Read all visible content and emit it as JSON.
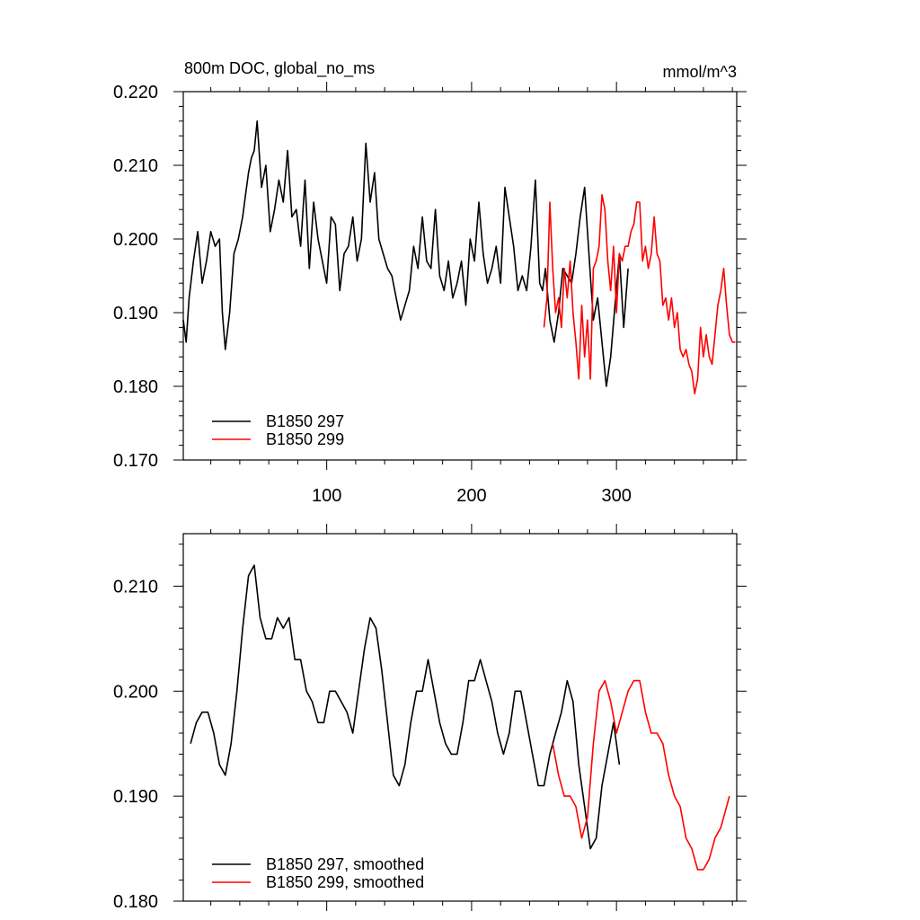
{
  "chart_data": [
    {
      "type": "line",
      "title": "800m DOC, global_no_ms",
      "units": "mmol/m^3",
      "xlabel": "",
      "ylabel": "",
      "xlim": [
        1,
        383
      ],
      "ylim": [
        0.17,
        0.22
      ],
      "x_ticks": [
        100,
        200,
        300
      ],
      "y_ticks": [
        "0.170",
        "0.180",
        "0.190",
        "0.200",
        "0.210",
        "0.220"
      ],
      "grid": false,
      "legend": "bottom-left",
      "series": [
        {
          "name": "B1850 297",
          "color": "#000000",
          "x": [
            1,
            3,
            5,
            8,
            11,
            14,
            17,
            20,
            23,
            26,
            28,
            30,
            33,
            36,
            39,
            42,
            44,
            46,
            48,
            50,
            52,
            55,
            58,
            61,
            64,
            67,
            70,
            73,
            76,
            79,
            82,
            85,
            88,
            91,
            94,
            97,
            100,
            103,
            106,
            109,
            112,
            115,
            118,
            121,
            124,
            127,
            130,
            133,
            136,
            139,
            142,
            145,
            148,
            151,
            154,
            157,
            160,
            163,
            166,
            169,
            172,
            175,
            178,
            181,
            184,
            187,
            190,
            193,
            196,
            199,
            202,
            205,
            208,
            211,
            214,
            217,
            220,
            223,
            226,
            229,
            232,
            235,
            238,
            241,
            244,
            247,
            249,
            251,
            254,
            257,
            260,
            263,
            266,
            269,
            272,
            275,
            278,
            281,
            284,
            287,
            290,
            293,
            296,
            299,
            302,
            305,
            308
          ],
          "values": [
            0.189,
            0.186,
            0.192,
            0.197,
            0.201,
            0.194,
            0.197,
            0.201,
            0.199,
            0.2,
            0.19,
            0.185,
            0.19,
            0.198,
            0.2,
            0.203,
            0.206,
            0.209,
            0.211,
            0.212,
            0.216,
            0.207,
            0.21,
            0.201,
            0.204,
            0.208,
            0.205,
            0.212,
            0.203,
            0.204,
            0.199,
            0.208,
            0.196,
            0.205,
            0.2,
            0.197,
            0.194,
            0.203,
            0.202,
            0.193,
            0.198,
            0.199,
            0.203,
            0.197,
            0.2,
            0.213,
            0.205,
            0.209,
            0.2,
            0.198,
            0.196,
            0.195,
            0.192,
            0.189,
            0.191,
            0.193,
            0.199,
            0.196,
            0.203,
            0.197,
            0.196,
            0.204,
            0.195,
            0.193,
            0.197,
            0.192,
            0.194,
            0.197,
            0.191,
            0.2,
            0.197,
            0.205,
            0.198,
            0.194,
            0.196,
            0.199,
            0.194,
            0.207,
            0.203,
            0.199,
            0.193,
            0.195,
            0.193,
            0.199,
            0.208,
            0.194,
            0.193,
            0.196,
            0.189,
            0.186,
            0.19,
            0.196,
            0.195,
            0.194,
            0.198,
            0.203,
            0.207,
            0.198,
            0.189,
            0.192,
            0.186,
            0.18,
            0.184,
            0.191,
            0.198,
            0.188,
            0.196
          ],
          "note_range": "x: 1–308"
        },
        {
          "name": "B1850 299",
          "color": "#ff0000",
          "x": [
            250,
            252,
            254,
            256,
            258,
            260,
            262,
            264,
            266,
            268,
            270,
            272,
            274,
            276,
            278,
            280,
            282,
            284,
            286,
            288,
            290,
            292,
            294,
            296,
            298,
            300,
            302,
            304,
            306,
            308,
            310,
            312,
            314,
            316,
            318,
            320,
            322,
            324,
            326,
            328,
            330,
            332,
            334,
            336,
            338,
            340,
            342,
            344,
            346,
            348,
            350,
            352,
            354,
            356,
            358,
            360,
            362,
            364,
            366,
            368,
            370,
            372,
            374,
            376,
            378,
            380,
            382
          ],
          "values": [
            0.188,
            0.192,
            0.205,
            0.196,
            0.19,
            0.192,
            0.188,
            0.196,
            0.192,
            0.197,
            0.19,
            0.186,
            0.181,
            0.191,
            0.184,
            0.189,
            0.181,
            0.196,
            0.197,
            0.199,
            0.206,
            0.204,
            0.197,
            0.193,
            0.199,
            0.19,
            0.198,
            0.197,
            0.199,
            0.199,
            0.201,
            0.202,
            0.205,
            0.205,
            0.197,
            0.199,
            0.196,
            0.198,
            0.203,
            0.198,
            0.197,
            0.191,
            0.192,
            0.189,
            0.192,
            0.188,
            0.19,
            0.185,
            0.184,
            0.185,
            0.183,
            0.182,
            0.179,
            0.181,
            0.188,
            0.184,
            0.187,
            0.184,
            0.183,
            0.187,
            0.191,
            0.193,
            0.196,
            0.191,
            0.187,
            0.186,
            0.186
          ]
        }
      ]
    },
    {
      "type": "line",
      "title": "",
      "xlabel": "",
      "ylabel": "",
      "xlim": [
        1,
        383
      ],
      "ylim": [
        0.18,
        0.215
      ],
      "x_ticks": [
        100,
        200,
        300
      ],
      "y_ticks": [
        "0.180",
        "0.190",
        "0.200",
        "0.210"
      ],
      "grid": false,
      "legend": "bottom-left",
      "series": [
        {
          "name": "B1850 297, smoothed",
          "color": "#000000",
          "x": [
            6,
            10,
            14,
            18,
            22,
            26,
            30,
            34,
            38,
            42,
            46,
            50,
            54,
            58,
            62,
            66,
            70,
            74,
            78,
            82,
            86,
            90,
            94,
            98,
            102,
            106,
            110,
            114,
            118,
            122,
            126,
            130,
            134,
            138,
            142,
            146,
            150,
            154,
            158,
            162,
            166,
            170,
            174,
            178,
            182,
            186,
            190,
            194,
            198,
            202,
            206,
            210,
            214,
            218,
            222,
            226,
            230,
            234,
            238,
            242,
            246,
            250,
            254,
            258,
            262,
            266,
            270,
            274,
            278,
            282,
            286,
            290,
            294,
            298,
            302
          ],
          "values": [
            0.195,
            0.197,
            0.198,
            0.198,
            0.196,
            0.193,
            0.192,
            0.195,
            0.2,
            0.206,
            0.211,
            0.212,
            0.207,
            0.205,
            0.205,
            0.207,
            0.206,
            0.207,
            0.203,
            0.203,
            0.2,
            0.199,
            0.197,
            0.197,
            0.2,
            0.2,
            0.199,
            0.198,
            0.196,
            0.2,
            0.204,
            0.207,
            0.206,
            0.202,
            0.197,
            0.192,
            0.191,
            0.193,
            0.197,
            0.2,
            0.2,
            0.203,
            0.2,
            0.197,
            0.195,
            0.194,
            0.194,
            0.197,
            0.201,
            0.201,
            0.203,
            0.201,
            0.199,
            0.196,
            0.194,
            0.196,
            0.2,
            0.2,
            0.197,
            0.194,
            0.191,
            0.191,
            0.194,
            0.196,
            0.198,
            0.201,
            0.199,
            0.193,
            0.189,
            0.185,
            0.186,
            0.191,
            0.194,
            0.197,
            0.193
          ]
        },
        {
          "name": "B1850 299, smoothed",
          "color": "#ff0000",
          "x": [
            256,
            260,
            264,
            268,
            272,
            276,
            280,
            284,
            288,
            292,
            296,
            300,
            304,
            308,
            312,
            316,
            320,
            324,
            328,
            332,
            336,
            340,
            344,
            348,
            352,
            356,
            360,
            364,
            368,
            372,
            376,
            378
          ],
          "values": [
            0.195,
            0.192,
            0.19,
            0.19,
            0.189,
            0.186,
            0.188,
            0.195,
            0.2,
            0.201,
            0.199,
            0.196,
            0.198,
            0.2,
            0.201,
            0.201,
            0.198,
            0.196,
            0.196,
            0.195,
            0.192,
            0.19,
            0.189,
            0.186,
            0.185,
            0.183,
            0.183,
            0.184,
            0.186,
            0.187,
            0.189,
            0.19
          ]
        }
      ]
    }
  ]
}
